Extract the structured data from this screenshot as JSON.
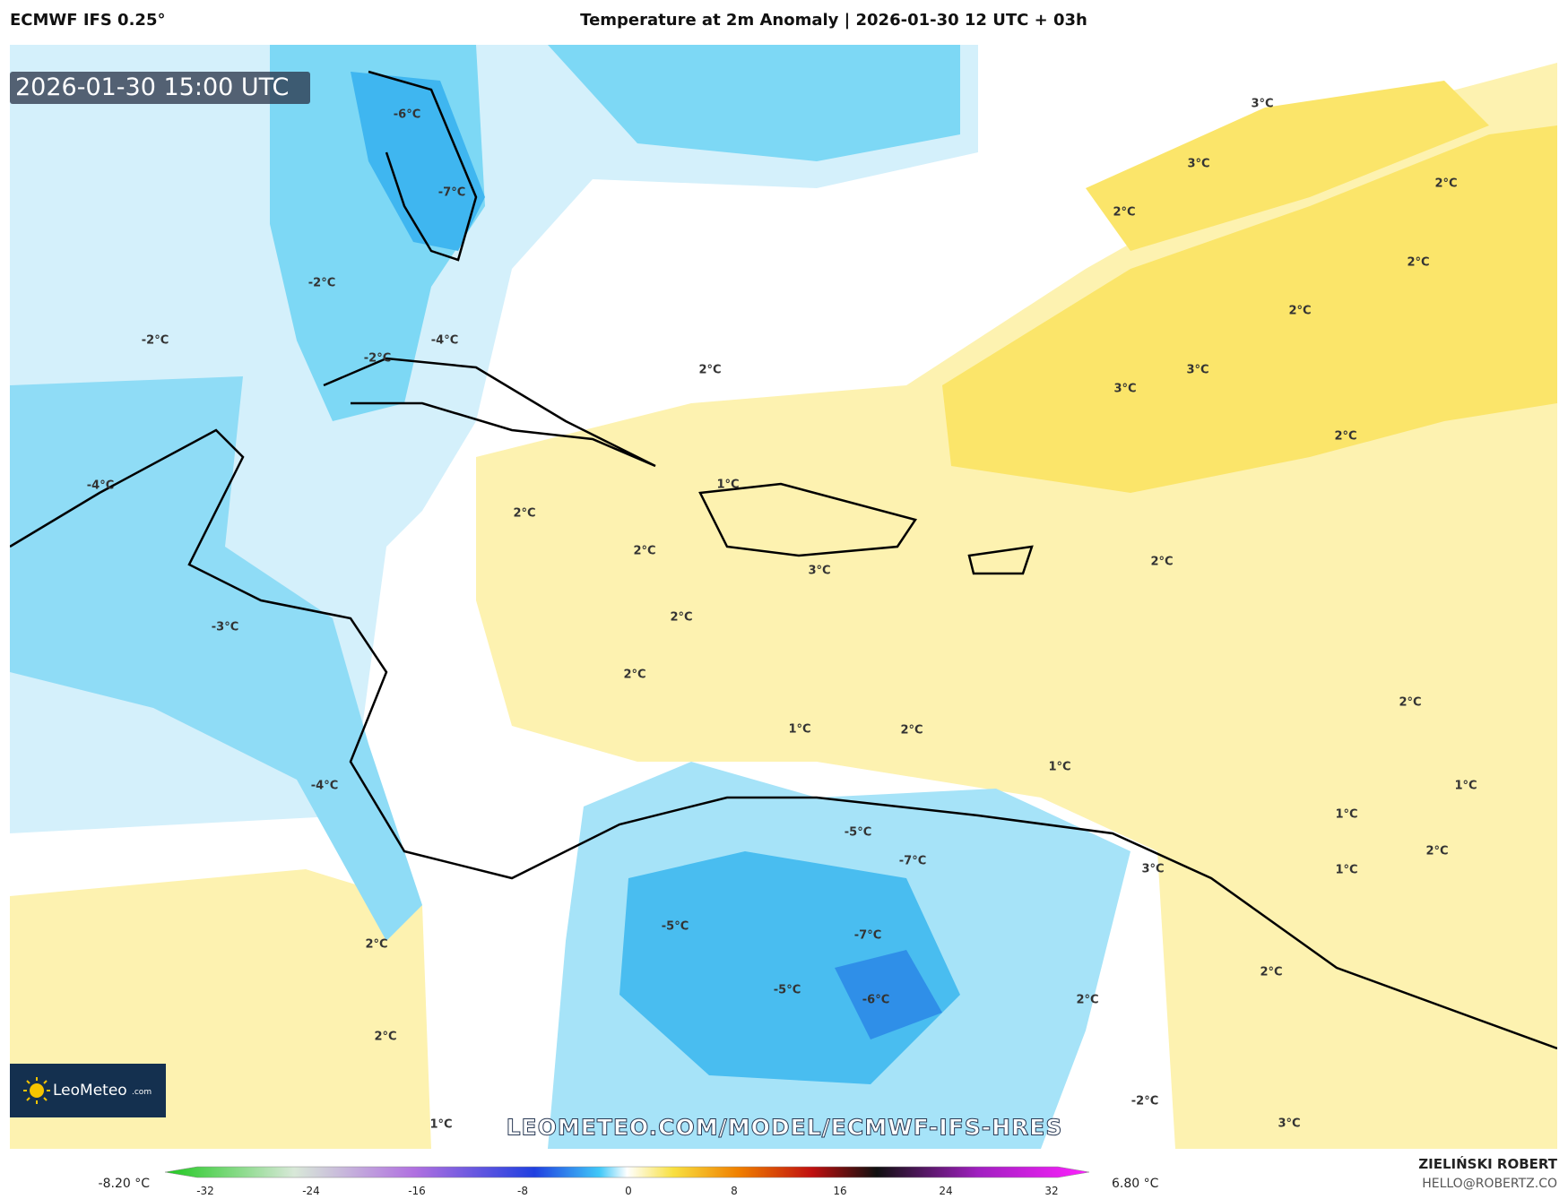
{
  "header": {
    "model": "ECMWF IFS 0.25°",
    "title": "Temperature at 2m Anomaly | 2026-01-30 12 UTC + 03h"
  },
  "timestamp": "2026-01-30 15:00 UTC",
  "map_labels": [
    "-6°C",
    "-7°C",
    "-2°C",
    "-2°C",
    "-2°C",
    "-4°C",
    "-4°C",
    "-3°C",
    "-4°C",
    "3°C",
    "3°C",
    "2°C",
    "2°C",
    "2°C",
    "2°C",
    "3°C",
    "3°C",
    "2°C",
    "2°C",
    "1°C",
    "2°C",
    "2°C",
    "3°C",
    "2°C",
    "2°C",
    "2°C",
    "2°C",
    "1°C",
    "2°C",
    "1°C",
    "1°C",
    "1°C",
    "2°C",
    "1°C",
    "-5°C",
    "-7°C",
    "3°C",
    "-5°C",
    "-7°C",
    "2°C",
    "2°C",
    "-5°C",
    "-6°C",
    "2°C",
    "2°C",
    "-2°C",
    "1°C",
    "3°C"
  ],
  "watermark": "LEOMETEO.COM/MODEL/ECMWF-IFS-HRES",
  "logo": {
    "brand": "LeoMeteo",
    "suffix": ".com"
  },
  "colorbar": {
    "min_label": "-8.20 °C",
    "max_label": "6.80 °C",
    "ticks": [
      -32,
      -24,
      -16,
      -8,
      0,
      8,
      16,
      24,
      32
    ]
  },
  "credit": {
    "author": "ZIELIŃSKI ROBERT",
    "contact": "HELLO@ROBERTZ.CO"
  }
}
